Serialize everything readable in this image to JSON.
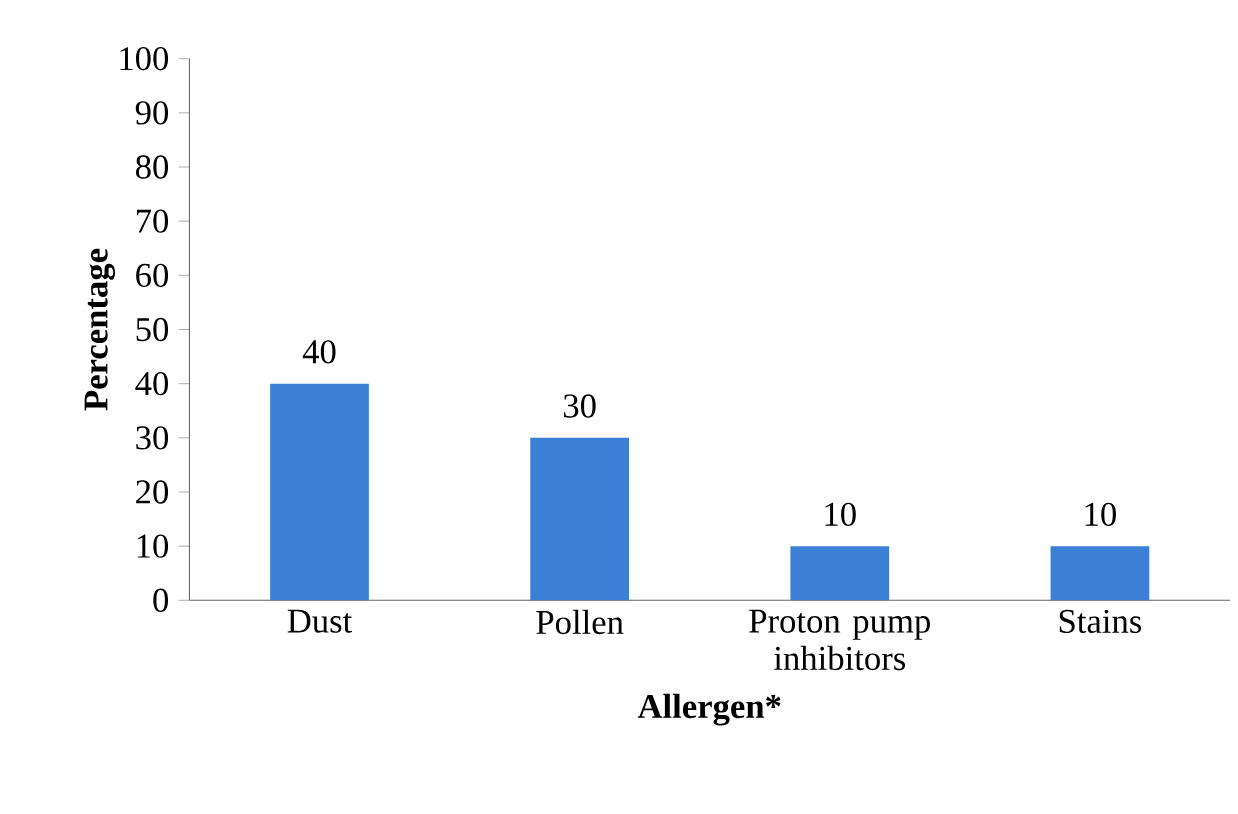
{
  "chart_data": {
    "type": "bar",
    "xlabel": "Allergen*",
    "ylabel": "Percentage",
    "categories": [
      "Dust",
      "Pollen",
      "Proton pump inhibitors",
      "Stains"
    ],
    "values": [
      40,
      30,
      10,
      10
    ],
    "color": "#3b7fd6",
    "ylim": [
      0,
      100
    ],
    "yticks": [
      0,
      10,
      20,
      30,
      40,
      50,
      60,
      70,
      80,
      90,
      100
    ],
    "data_labels": true,
    "grid": false
  }
}
